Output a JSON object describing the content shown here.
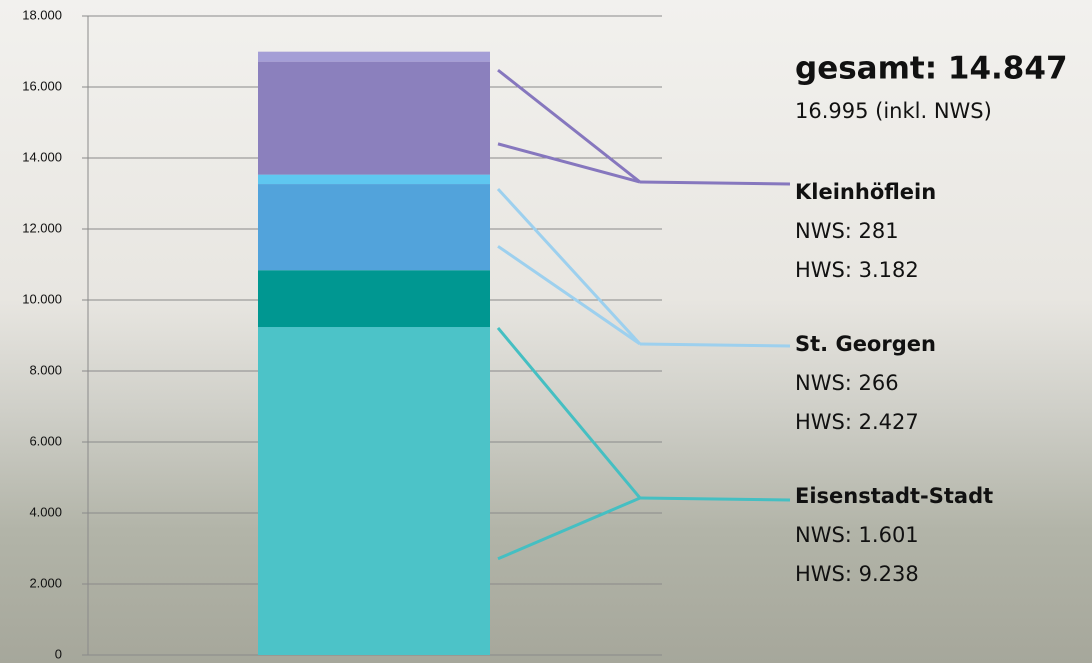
{
  "chart_data": {
    "type": "stacked_bar",
    "categories": [
      null
    ],
    "ylim": [
      0,
      18000
    ],
    "yticks": [
      0,
      {
        "value": 2000,
        "label": "2.000"
      },
      {
        "value": 4000,
        "label": "4.000"
      },
      {
        "value": 6000,
        "label": "6.000"
      },
      {
        "value": 8000,
        "label": "8.000"
      },
      {
        "value": 10000,
        "label": "10.000"
      },
      {
        "value": 12000,
        "label": "12.000"
      },
      {
        "value": 14000,
        "label": "14.000"
      },
      {
        "value": 16000,
        "label": "16.000"
      },
      {
        "value": 18000,
        "label": "18.000"
      }
    ],
    "grid": true,
    "annotations": [
      "gesamt: 14.847",
      "16.995 (inkl. NWS)"
    ],
    "groups": [
      {
        "name": "Kleinhöflein",
        "color": "#8677be",
        "series": [
          {
            "values": [
              3182
            ],
            "value_labels": [
              "HWS: 3.182"
            ],
            "color": "#8b80bd"
          },
          {
            "values": [
              281
            ],
            "value_labels": [
              "NWS: 281"
            ],
            "color": "#a49ed6"
          }
        ]
      },
      {
        "name": "St. Georgen",
        "color": "#9dd0ee",
        "series": [
          {
            "values": [
              2427
            ],
            "value_labels": [
              "HWS: 2.427"
            ],
            "color": "#52a3db"
          },
          {
            "values": [
              266
            ],
            "value_labels": [
              "NWS: 266"
            ],
            "color": "#5fc7f0"
          }
        ]
      },
      {
        "name": "Eisenstadt-Stadt",
        "color": "#45bfc2",
        "series": [
          {
            "values": [
              9238
            ],
            "value_labels": [
              "HWS: 9.238"
            ],
            "color": "#4cc3c8"
          },
          {
            "values": [
              1601
            ],
            "value_labels": [
              "NWS: 1.601"
            ],
            "color": "#009791"
          }
        ]
      }
    ]
  }
}
